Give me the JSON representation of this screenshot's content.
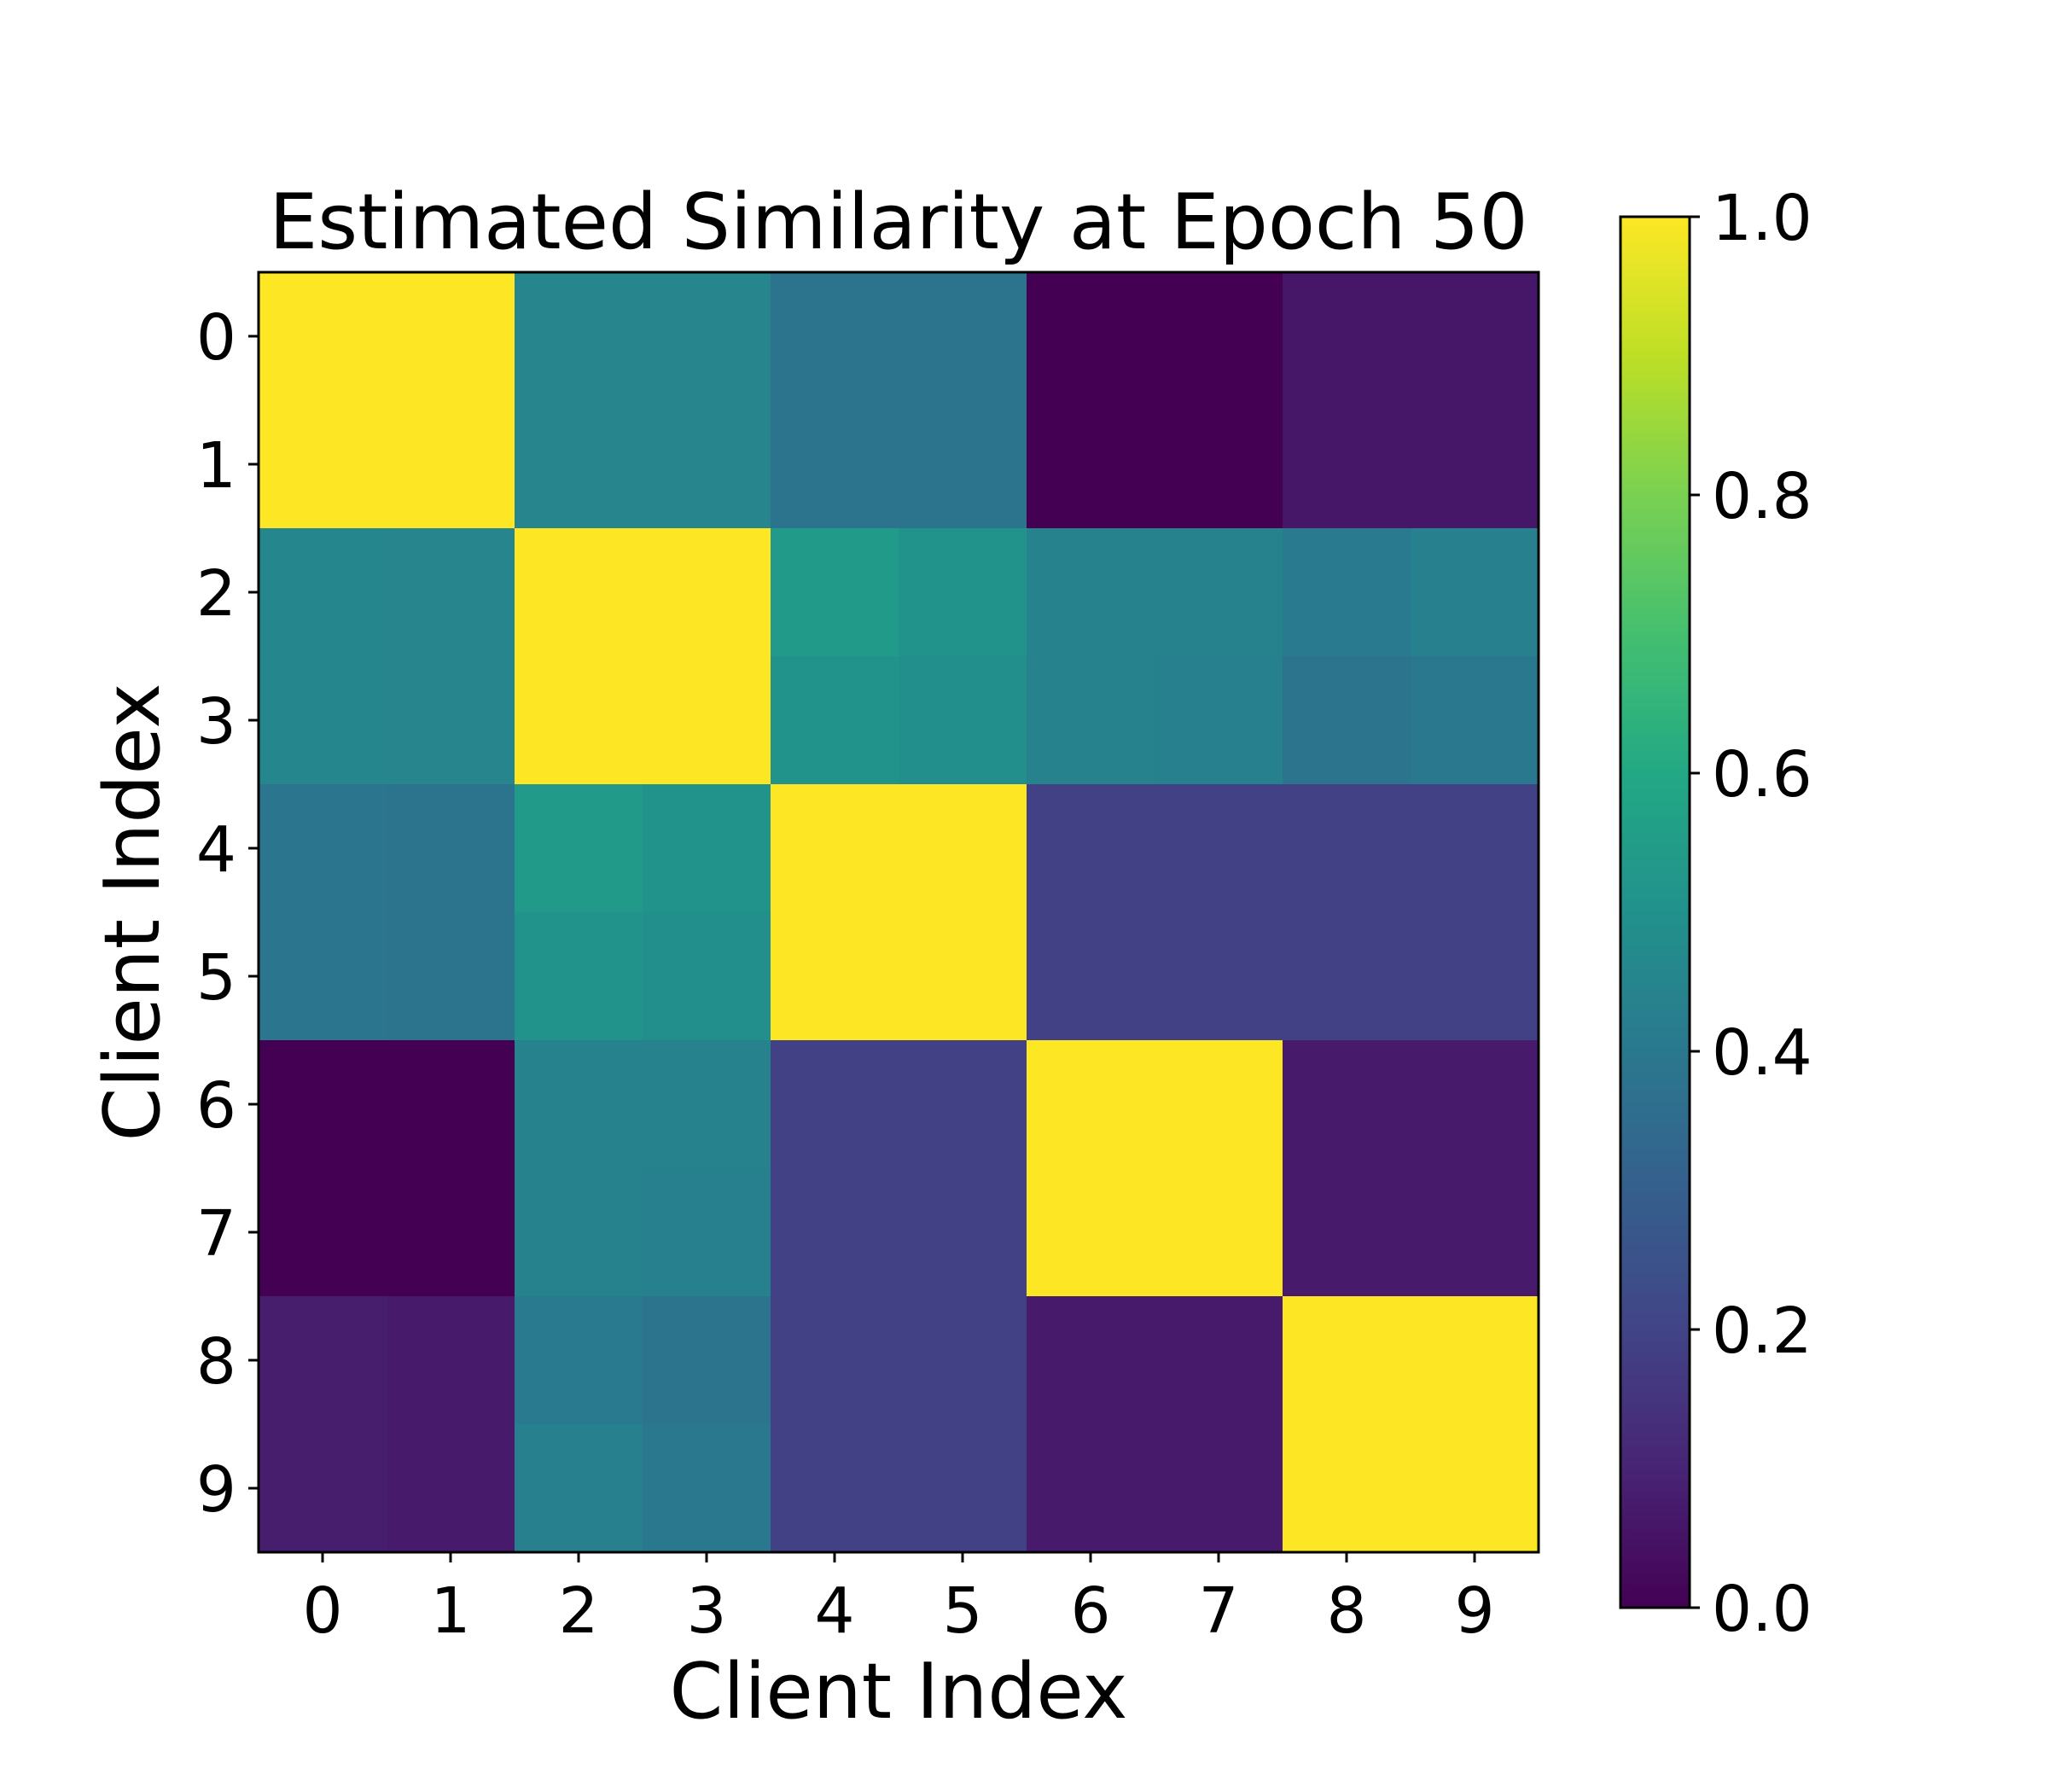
{
  "chart_data": {
    "type": "heatmap",
    "title": "Estimated Similarity at Epoch 50",
    "xlabel": "Client Index",
    "ylabel": "Client Index",
    "x_categories": [
      "0",
      "1",
      "2",
      "3",
      "4",
      "5",
      "6",
      "7",
      "8",
      "9"
    ],
    "y_categories": [
      "0",
      "1",
      "2",
      "3",
      "4",
      "5",
      "6",
      "7",
      "8",
      "9"
    ],
    "values": [
      [
        1.0,
        1.0,
        0.45,
        0.45,
        0.38,
        0.38,
        0.0,
        0.0,
        0.06,
        0.06
      ],
      [
        1.0,
        1.0,
        0.45,
        0.45,
        0.38,
        0.38,
        0.0,
        0.0,
        0.06,
        0.06
      ],
      [
        0.46,
        0.45,
        1.0,
        1.0,
        0.54,
        0.51,
        0.44,
        0.44,
        0.41,
        0.43
      ],
      [
        0.46,
        0.45,
        1.0,
        1.0,
        0.51,
        0.49,
        0.44,
        0.43,
        0.38,
        0.4
      ],
      [
        0.39,
        0.38,
        0.54,
        0.51,
        1.0,
        1.0,
        0.19,
        0.19,
        0.19,
        0.19
      ],
      [
        0.39,
        0.38,
        0.51,
        0.49,
        1.0,
        1.0,
        0.19,
        0.19,
        0.19,
        0.19
      ],
      [
        0.0,
        0.0,
        0.44,
        0.44,
        0.19,
        0.19,
        1.0,
        1.0,
        0.07,
        0.07
      ],
      [
        0.0,
        0.0,
        0.44,
        0.43,
        0.19,
        0.19,
        1.0,
        1.0,
        0.07,
        0.07
      ],
      [
        0.08,
        0.07,
        0.41,
        0.38,
        0.19,
        0.19,
        0.07,
        0.07,
        1.0,
        1.0
      ],
      [
        0.08,
        0.07,
        0.43,
        0.4,
        0.19,
        0.19,
        0.07,
        0.07,
        1.0,
        1.0
      ]
    ],
    "colormap": "viridis",
    "vmin": 0.0,
    "vmax": 1.0,
    "colorbar_ticks": [
      "0.0",
      "0.2",
      "0.4",
      "0.6",
      "0.8",
      "1.0"
    ],
    "grid": false
  }
}
